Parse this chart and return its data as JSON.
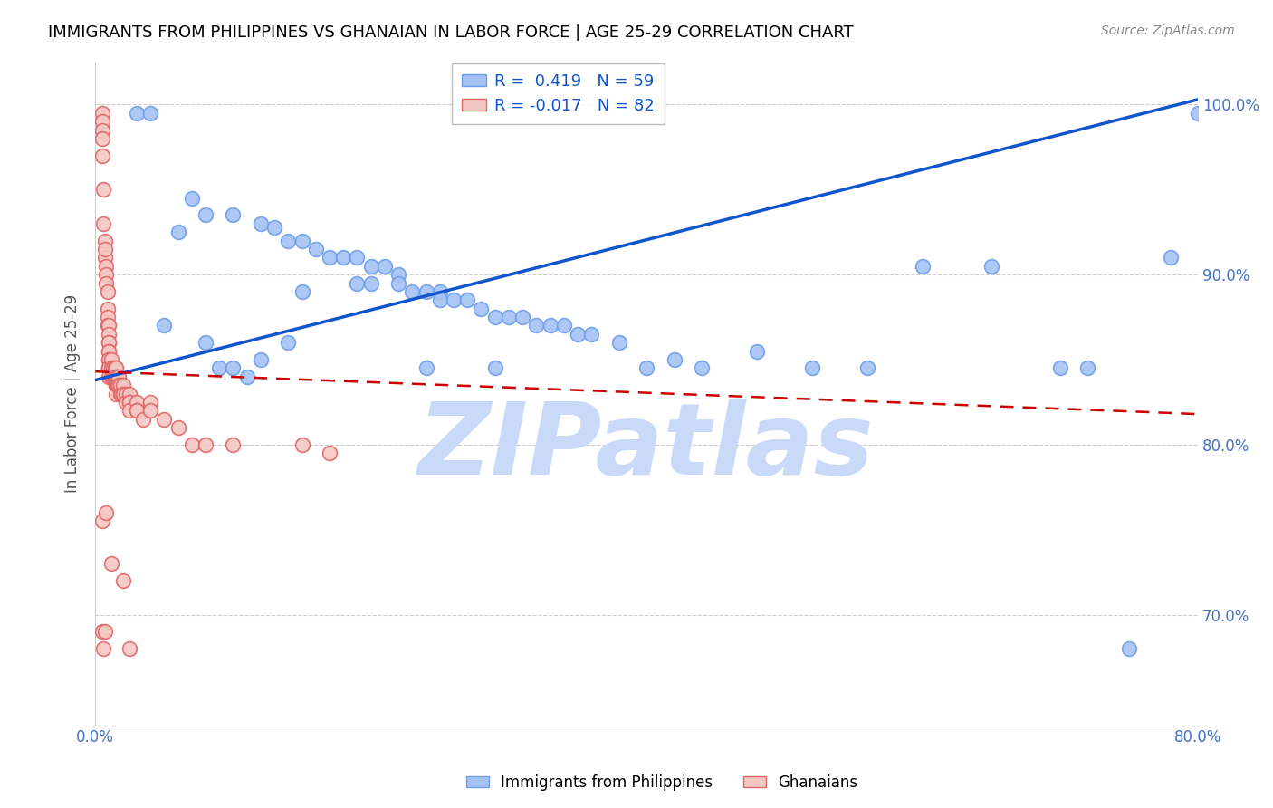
{
  "title": "IMMIGRANTS FROM PHILIPPINES VS GHANAIAN IN LABOR FORCE | AGE 25-29 CORRELATION CHART",
  "source": "Source: ZipAtlas.com",
  "ylabel": "In Labor Force | Age 25-29",
  "xlim": [
    0.0,
    0.8
  ],
  "ylim": [
    0.635,
    1.025
  ],
  "yticks": [
    0.7,
    0.8,
    0.9,
    1.0
  ],
  "ytick_labels": [
    "70.0%",
    "80.0%",
    "90.0%",
    "100.0%"
  ],
  "xticks": [
    0.0,
    0.1,
    0.2,
    0.3,
    0.4,
    0.5,
    0.6,
    0.7,
    0.8
  ],
  "xtick_labels": [
    "0.0%",
    "",
    "",
    "",
    "",
    "",
    "",
    "",
    "80.0%"
  ],
  "blue_R": 0.419,
  "blue_N": 59,
  "pink_R": -0.017,
  "pink_N": 82,
  "blue_color": "#a4c2f4",
  "pink_color": "#f4c7c3",
  "blue_edge_color": "#6d9eeb",
  "pink_edge_color": "#e06666",
  "blue_line_color": "#1155cc",
  "pink_line_color": "#cc0000",
  "tick_color": "#4472c4",
  "title_color": "#000000",
  "watermark_color": "#c9daf8",
  "watermark_text": "ZIPatlas",
  "blue_line_x0": 0.0,
  "blue_line_y0": 0.838,
  "blue_line_x1": 0.8,
  "blue_line_y1": 1.003,
  "pink_line_x0": 0.0,
  "pink_line_y0": 0.843,
  "pink_line_x1": 0.8,
  "pink_line_y1": 0.818,
  "blue_scatter_x": [
    0.03,
    0.04,
    0.08,
    0.1,
    0.12,
    0.13,
    0.14,
    0.15,
    0.16,
    0.17,
    0.18,
    0.19,
    0.2,
    0.21,
    0.22,
    0.22,
    0.23,
    0.24,
    0.25,
    0.25,
    0.26,
    0.27,
    0.28,
    0.29,
    0.3,
    0.31,
    0.32,
    0.33,
    0.34,
    0.35,
    0.36,
    0.38,
    0.4,
    0.42,
    0.44,
    0.48,
    0.52,
    0.56,
    0.6,
    0.65,
    0.7,
    0.72,
    0.75,
    0.78,
    0.8,
    0.05,
    0.06,
    0.07,
    0.08,
    0.09,
    0.1,
    0.11,
    0.12,
    0.14,
    0.15,
    0.19,
    0.2,
    0.24,
    0.29
  ],
  "blue_scatter_y": [
    0.995,
    0.995,
    0.935,
    0.935,
    0.93,
    0.928,
    0.92,
    0.92,
    0.915,
    0.91,
    0.91,
    0.91,
    0.905,
    0.905,
    0.9,
    0.895,
    0.89,
    0.89,
    0.89,
    0.885,
    0.885,
    0.885,
    0.88,
    0.875,
    0.875,
    0.875,
    0.87,
    0.87,
    0.87,
    0.865,
    0.865,
    0.86,
    0.845,
    0.85,
    0.845,
    0.855,
    0.845,
    0.845,
    0.905,
    0.905,
    0.845,
    0.845,
    0.68,
    0.91,
    0.995,
    0.87,
    0.925,
    0.945,
    0.86,
    0.845,
    0.845,
    0.84,
    0.85,
    0.86,
    0.89,
    0.895,
    0.895,
    0.845,
    0.845
  ],
  "pink_scatter_x": [
    0.005,
    0.005,
    0.005,
    0.005,
    0.005,
    0.006,
    0.006,
    0.007,
    0.007,
    0.007,
    0.008,
    0.008,
    0.008,
    0.009,
    0.009,
    0.009,
    0.009,
    0.01,
    0.01,
    0.01,
    0.01,
    0.01,
    0.01,
    0.01,
    0.01,
    0.01,
    0.01,
    0.01,
    0.01,
    0.012,
    0.012,
    0.012,
    0.013,
    0.013,
    0.013,
    0.014,
    0.014,
    0.014,
    0.015,
    0.015,
    0.015,
    0.015,
    0.015,
    0.015,
    0.016,
    0.016,
    0.016,
    0.017,
    0.017,
    0.018,
    0.018,
    0.019,
    0.02,
    0.02,
    0.02,
    0.022,
    0.022,
    0.025,
    0.025,
    0.025,
    0.025,
    0.03,
    0.03,
    0.03,
    0.035,
    0.04,
    0.04,
    0.05,
    0.06,
    0.07,
    0.08,
    0.1,
    0.15,
    0.17,
    0.005,
    0.005,
    0.006,
    0.007,
    0.008,
    0.012,
    0.02,
    0.025
  ],
  "pink_scatter_y": [
    0.995,
    0.99,
    0.985,
    0.98,
    0.97,
    0.95,
    0.93,
    0.92,
    0.91,
    0.915,
    0.905,
    0.9,
    0.895,
    0.89,
    0.88,
    0.875,
    0.87,
    0.87,
    0.865,
    0.86,
    0.86,
    0.855,
    0.855,
    0.85,
    0.85,
    0.845,
    0.845,
    0.845,
    0.84,
    0.85,
    0.845,
    0.84,
    0.845,
    0.84,
    0.84,
    0.845,
    0.84,
    0.84,
    0.845,
    0.84,
    0.84,
    0.835,
    0.835,
    0.83,
    0.84,
    0.835,
    0.835,
    0.84,
    0.835,
    0.835,
    0.83,
    0.83,
    0.835,
    0.83,
    0.83,
    0.83,
    0.825,
    0.83,
    0.825,
    0.825,
    0.82,
    0.825,
    0.82,
    0.82,
    0.815,
    0.825,
    0.82,
    0.815,
    0.81,
    0.8,
    0.8,
    0.8,
    0.8,
    0.795,
    0.755,
    0.69,
    0.68,
    0.69,
    0.76,
    0.73,
    0.72,
    0.68
  ]
}
